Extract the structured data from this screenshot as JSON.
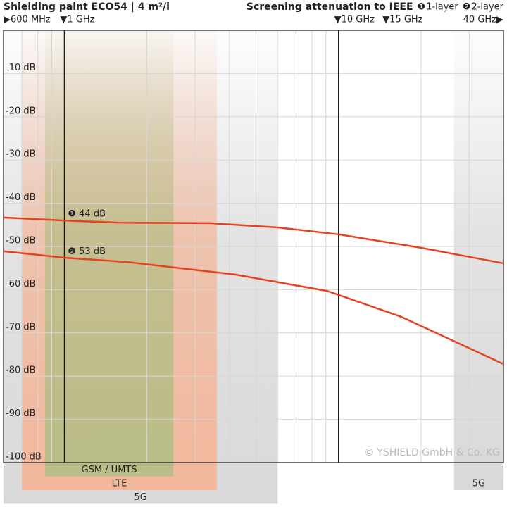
{
  "chart_data": {
    "type": "line",
    "title": "Shielding paint ECO54 | 4 m²/l",
    "subtitle": "Screening attenuation to IEEE",
    "xscale": "log",
    "xlim": [
      600,
      40000
    ],
    "xticks": [
      {
        "value": 600,
        "label": "▶600 MHz"
      },
      {
        "value": 1000,
        "label": "▼1 GHz"
      },
      {
        "value": 10000,
        "label": "▼10 GHz"
      },
      {
        "value": 15000,
        "label": "▼15 GHz"
      },
      {
        "value": 40000,
        "label": "40 GHz▶"
      }
    ],
    "xgrid": [
      700,
      800,
      900,
      2000,
      3000,
      4000,
      5000,
      6000,
      7000,
      8000,
      9000,
      20000,
      30000
    ],
    "ref_lines": [
      1000,
      10000
    ],
    "ylim": [
      -100,
      0
    ],
    "yticks": [
      {
        "value": -10,
        "label": "-10 dB"
      },
      {
        "value": -20,
        "label": "-20 dB"
      },
      {
        "value": -30,
        "label": "-30 dB"
      },
      {
        "value": -40,
        "label": "-40 dB"
      },
      {
        "value": -50,
        "label": "-50 dB"
      },
      {
        "value": -60,
        "label": "-60 dB"
      },
      {
        "value": -70,
        "label": "-70 dB"
      },
      {
        "value": -80,
        "label": "-80 dB"
      },
      {
        "value": -90,
        "label": "-90 dB"
      },
      {
        "value": -100,
        "label": "-100 dB"
      }
    ],
    "grid": true,
    "series": [
      {
        "name": "1-layer",
        "marker": "❶",
        "color": "#e5431f",
        "x": [
          600,
          1000,
          1600,
          3400,
          6000,
          10000,
          20000,
          40000
        ],
        "values": [
          -43.3,
          -44,
          -44.5,
          -44.6,
          -45.6,
          -47.2,
          -50.3,
          -53.9
        ]
      },
      {
        "name": "2-layer",
        "marker": "❷",
        "color": "#e5431f",
        "x": [
          600,
          1000,
          1700,
          4200,
          9100,
          17000,
          40000
        ],
        "values": [
          -51.1,
          -52.6,
          -53.6,
          -56.5,
          -60.3,
          -66.3,
          -77.2
        ]
      }
    ],
    "annotations": [
      {
        "text": "❶ 44 dB",
        "x": 1000,
        "y": -42.5
      },
      {
        "text": "❷ 53 dB",
        "x": 1000,
        "y": -51.2
      }
    ],
    "bands": [
      {
        "label": "5G",
        "range": [
          600,
          6000
        ],
        "color": "#d9d9d9",
        "row": 3
      },
      {
        "label": "LTE",
        "range": [
          700,
          3600
        ],
        "color": "#f2b89c",
        "row": 2
      },
      {
        "label": "GSM / UMTS",
        "range": [
          850,
          2500
        ],
        "color": "#b9bd88",
        "row": 1
      },
      {
        "label": "5G",
        "range": [
          26400,
          40000
        ],
        "color": "#d9d9d9",
        "row": 2
      }
    ],
    "copyright": "© YSHIELD GmbH & Co. KG"
  }
}
